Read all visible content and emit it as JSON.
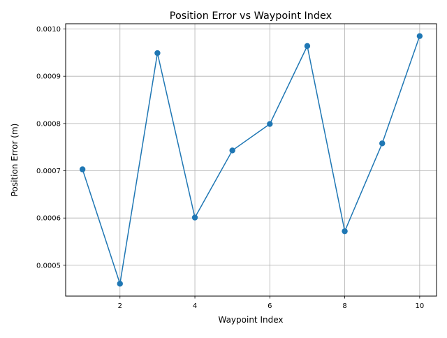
{
  "chart_data": {
    "type": "line",
    "title": "Position Error vs Waypoint Index",
    "xlabel": "Waypoint Index",
    "ylabel": "Position Error (m)",
    "x": [
      1,
      2,
      3,
      4,
      5,
      6,
      7,
      8,
      9,
      10
    ],
    "series": [
      {
        "values": [
          0.000703,
          0.000461,
          0.000949,
          0.000601,
          0.000743,
          0.000799,
          0.000964,
          0.000572,
          0.000758,
          0.000985
        ],
        "color": "#1f77b4",
        "marker": "circle"
      }
    ],
    "xlim": [
      0.55,
      10.45
    ],
    "ylim": [
      0.0004348,
      0.0010111
    ],
    "xticks": [
      2,
      4,
      6,
      8,
      10
    ],
    "xtick_labels": [
      "2",
      "4",
      "6",
      "8",
      "10"
    ],
    "yticks": [
      0.0005,
      0.0006,
      0.0007,
      0.0008,
      0.0009,
      0.001
    ],
    "ytick_labels": [
      "0.0005",
      "0.0006",
      "0.0007",
      "0.0008",
      "0.0009",
      "0.0010"
    ],
    "grid": true,
    "legend": "none"
  }
}
